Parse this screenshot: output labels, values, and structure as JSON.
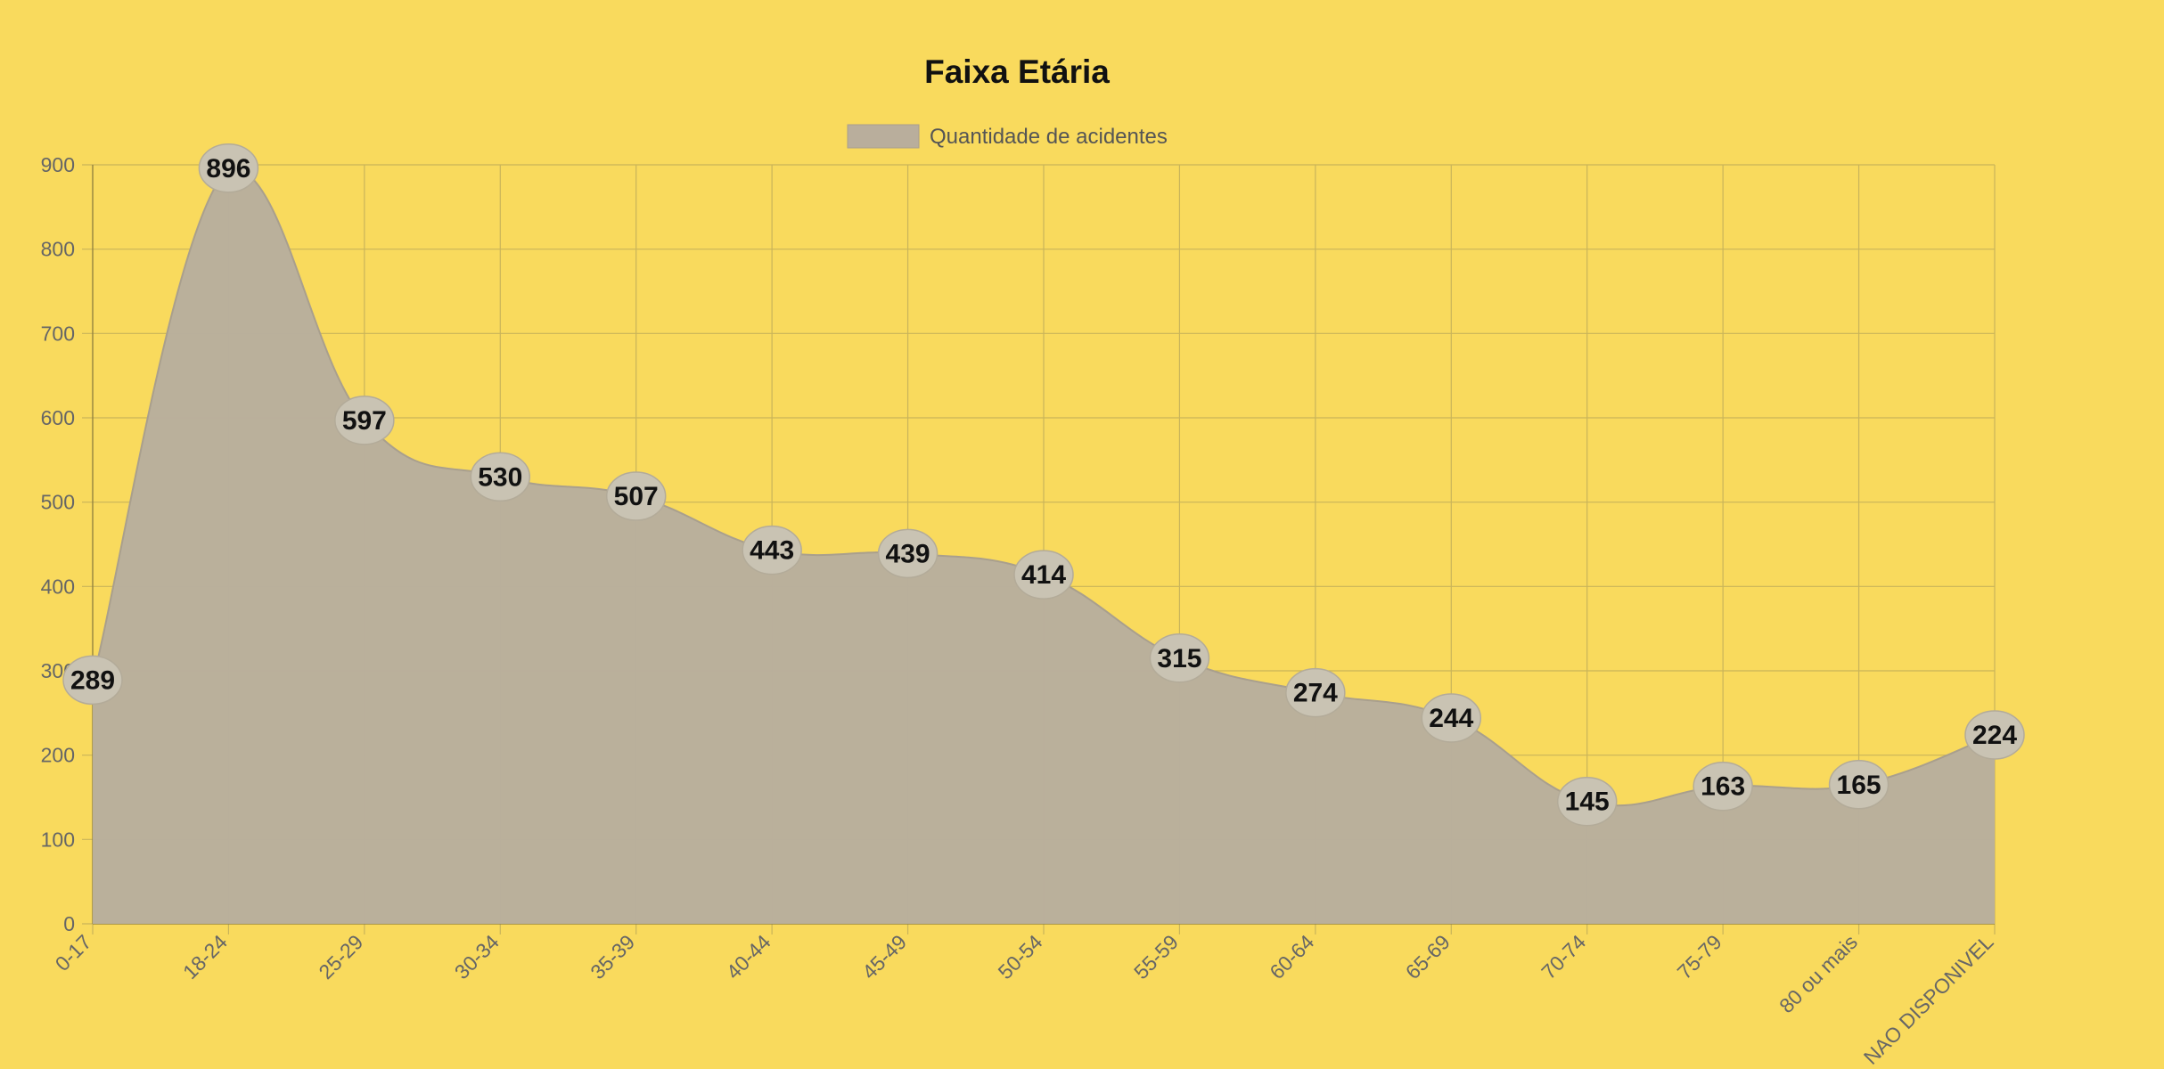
{
  "chart_data": {
    "type": "area",
    "title": "Faixa Etária",
    "legend": {
      "label": "Quantidade de acidentes",
      "position": "top"
    },
    "categories": [
      "0-17",
      "18-24",
      "25-29",
      "30-34",
      "35-39",
      "40-44",
      "45-49",
      "50-54",
      "55-59",
      "60-64",
      "65-69",
      "70-74",
      "75-79",
      "80 ou mais",
      "NAO DISPONIVEL"
    ],
    "series": [
      {
        "name": "Quantidade de acidentes",
        "values": [
          289,
          896,
          597,
          530,
          507,
          443,
          439,
          414,
          315,
          274,
          244,
          145,
          163,
          165,
          224
        ]
      }
    ],
    "y_ticks": [
      0,
      100,
      200,
      300,
      400,
      500,
      600,
      700,
      800,
      900
    ],
    "ylim": [
      0,
      900
    ],
    "grid": true,
    "colors": {
      "background": "#f9da5d",
      "fill": "#b9ae9c",
      "line": "#a99f8d",
      "label_bubble": "#c9c3b3",
      "grid": "#c9b45a",
      "axis_text": "#666666"
    }
  }
}
